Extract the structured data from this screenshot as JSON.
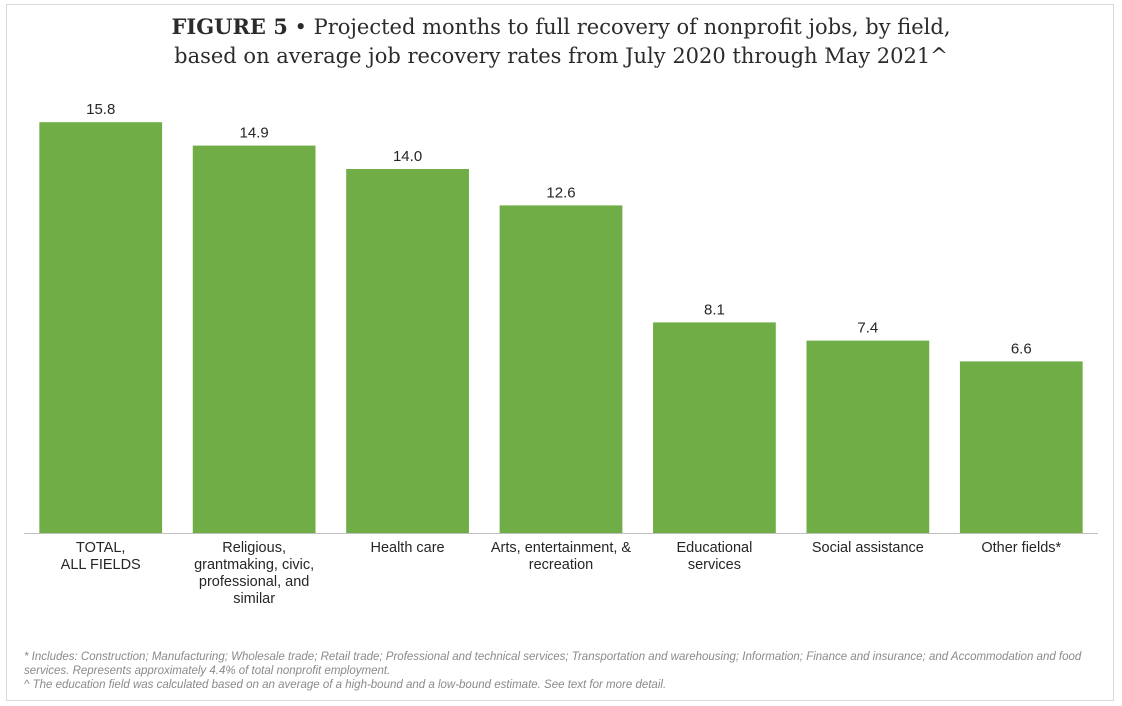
{
  "figure": {
    "label": "FIGURE 5",
    "separator": "•",
    "title_line1": "Projected months to full recovery of nonprofit jobs, by field,",
    "title_line2": "based on average job recovery rates from July 2020 through May 2021^"
  },
  "colors": {
    "bar": "#70ad47",
    "axis": "#bfbfbf",
    "text": "#262626"
  },
  "chart_data": {
    "type": "bar",
    "title": "Projected months to full recovery of nonprofit jobs, by field, based on average job recovery rates from July 2020 through May 2021^",
    "categories": [
      "TOTAL,\nALL FIELDS",
      "Religious,\ngrantmaking, civic,\nprofessional, and\nsimilar",
      "Health care",
      "Arts, entertainment, &\nrecreation",
      "Educational\nservices",
      "Social assistance",
      "Other fields*"
    ],
    "values": [
      15.8,
      14.9,
      14.0,
      12.6,
      8.1,
      7.4,
      6.6
    ],
    "value_labels": [
      "15.8",
      "14.9",
      "14.0",
      "12.6",
      "8.1",
      "7.4",
      "6.6"
    ],
    "ylim": [
      0,
      16
    ],
    "xlabel": "",
    "ylabel": "",
    "grid": false,
    "legend": "none"
  },
  "footnotes": {
    "asterisk": "* Includes: Construction; Manufacturing; Wholesale trade; Retail trade; Professional and technical services; Transportation and warehousing; Information; Finance and insurance; and Accommodation and food services. Represents approximately 4.4% of total nonprofit employment.",
    "caret": "^ The education field was calculated based on an average of a high-bound and a low-bound estimate. See text for more detail."
  }
}
